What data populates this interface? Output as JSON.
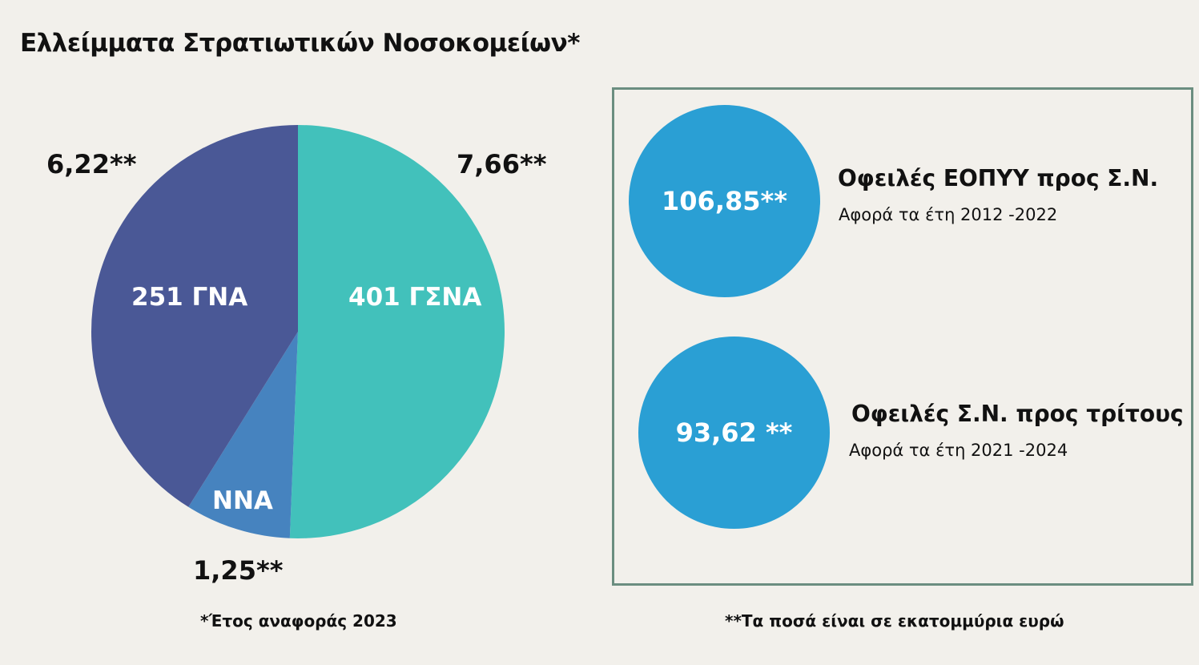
{
  "title": "Ελλείμματα Στρατιωτικών Νοσοκομείων*",
  "chart_data": {
    "type": "pie",
    "title": "Ελλείμματα Στρατιωτικών Νοσοκομείων*",
    "unit_note": "**Τα ποσά είναι σε εκατομμύρια ευρώ",
    "slices": [
      {
        "name": "401 ΓΣΝΑ",
        "value": 7.66,
        "value_label": "7,66**",
        "color": "#42c1bb"
      },
      {
        "name": "ΝΝΑ",
        "value": 1.25,
        "value_label": "1,25**",
        "color": "#4683bf"
      },
      {
        "name": "251 ΓΝΑ",
        "value": 6.22,
        "value_label": "6,22**",
        "color": "#4a5896"
      }
    ]
  },
  "footnotes": {
    "year": "*Έτος αναφοράς 2023",
    "unit": "**Τα ποσά είναι σε εκατομμύρια ευρώ"
  },
  "debts": [
    {
      "value": "106,85**",
      "title": "Οφειλές ΕΟΠΥΥ προς Σ.Ν.",
      "subtitle": "Αφορά τα έτη 2012 -2022"
    },
    {
      "value": "93,62 **",
      "title": "Οφειλές Σ.Ν. προς τρίτους",
      "subtitle": "Αφορά τα έτη 2021 -2024"
    }
  ],
  "colors": {
    "circle": "#2a9fd4",
    "box_border": "#6b8e80",
    "background": "#f2f0eb"
  }
}
